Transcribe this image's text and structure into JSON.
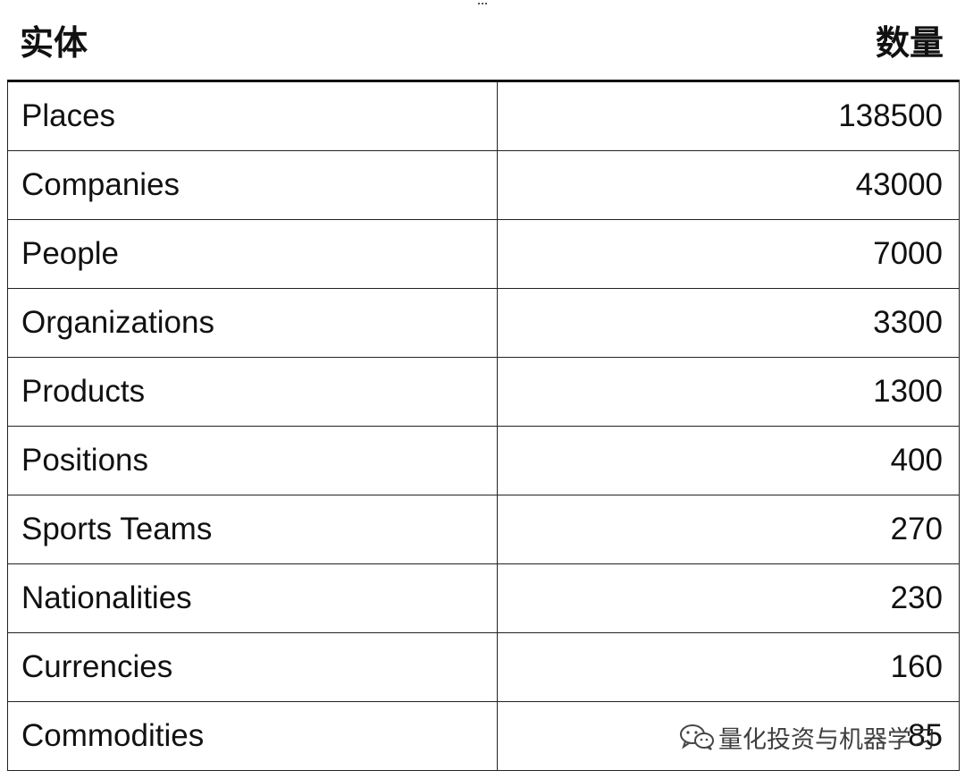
{
  "table": {
    "headers": {
      "entity": "实体",
      "count": "数量"
    },
    "rows": [
      {
        "entity": "Places",
        "count": "138500"
      },
      {
        "entity": "Companies",
        "count": "43000"
      },
      {
        "entity": "People",
        "count": "7000"
      },
      {
        "entity": "Organizations",
        "count": "3300"
      },
      {
        "entity": "Products",
        "count": "1300"
      },
      {
        "entity": "Positions",
        "count": "400"
      },
      {
        "entity": "Sports Teams",
        "count": "270"
      },
      {
        "entity": "Nationalities",
        "count": "230"
      },
      {
        "entity": "Currencies",
        "count": "160"
      },
      {
        "entity": "Commodities",
        "count": "85"
      }
    ]
  },
  "watermark": {
    "text": "量化投资与机器学习",
    "icon": "wechat-icon"
  }
}
